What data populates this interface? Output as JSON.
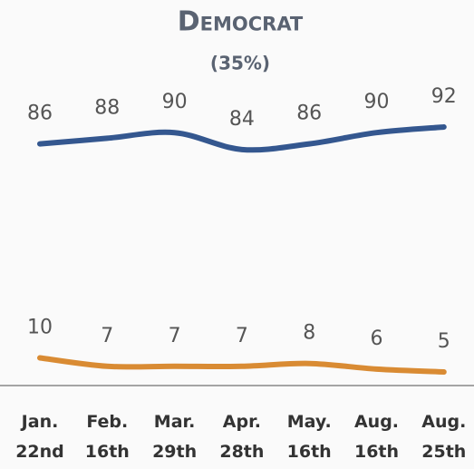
{
  "chart_data": {
    "type": "line",
    "title": "Democrat",
    "subtitle": "(35%)",
    "categories": [
      "Jan. 22nd",
      "Feb. 16th",
      "Mar. 29th",
      "Apr. 28th",
      "May. 16th",
      "Aug. 16th",
      "Aug. 25th"
    ],
    "series": [
      {
        "color": "#34578f",
        "values": [
          86,
          88,
          90,
          84,
          86,
          90,
          92
        ]
      },
      {
        "color": "#d98b33",
        "values": [
          10,
          7,
          7,
          7,
          8,
          6,
          5
        ]
      }
    ]
  }
}
